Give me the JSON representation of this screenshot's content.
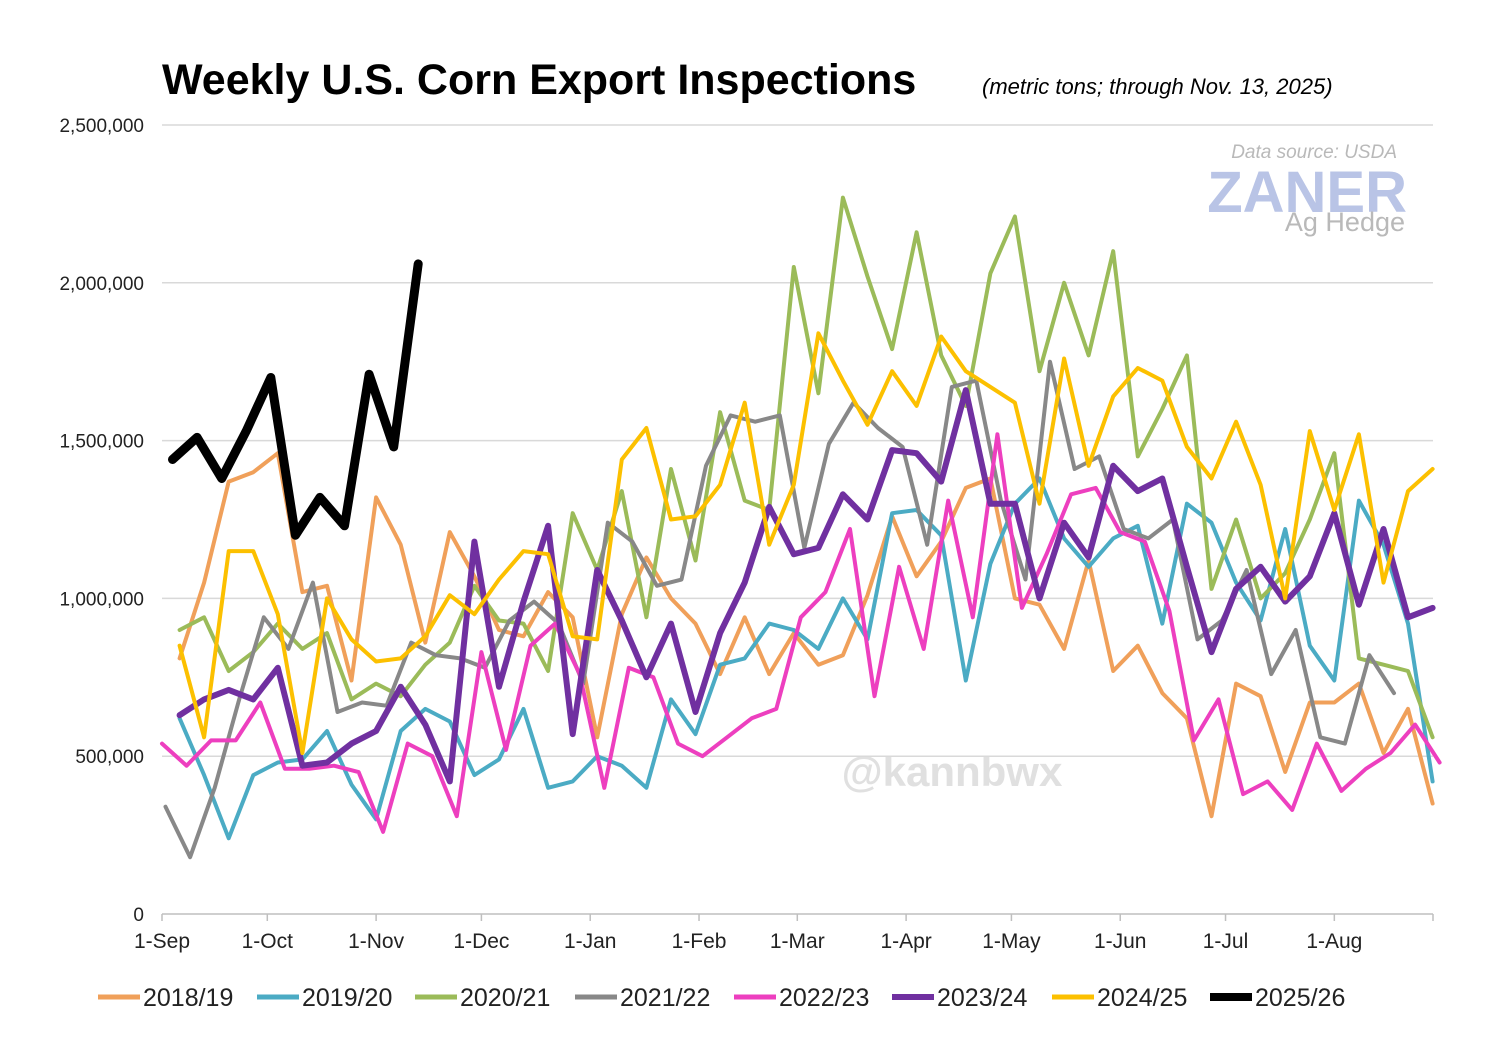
{
  "chart_data": {
    "type": "line",
    "title": "Weekly U.S. Corn Export Inspections",
    "subtitle": "(metric tons; through Nov. 13, 2025)",
    "source": "Data source: USDA",
    "watermark": {
      "brand": "ZANER",
      "brand_sub": "Ag Hedge",
      "handle": "@kannbwx"
    },
    "xlabel": "",
    "ylabel": "",
    "ylim": [
      0,
      2500000
    ],
    "yticks": [
      {
        "value": 0,
        "label": "0"
      },
      {
        "value": 500000,
        "label": "500,000"
      },
      {
        "value": 1000000,
        "label": "1,000,000"
      },
      {
        "value": 1500000,
        "label": "1,500,000"
      },
      {
        "value": 2000000,
        "label": "2,000,000"
      },
      {
        "value": 2500000,
        "label": "2,500,000"
      }
    ],
    "x_unit": "days since 1-Sep",
    "xlim": [
      0,
      365
    ],
    "xticks": [
      {
        "day": 0,
        "label": "1-Sep"
      },
      {
        "day": 30,
        "label": "1-Oct"
      },
      {
        "day": 61,
        "label": "1-Nov"
      },
      {
        "day": 91,
        "label": "1-Dec"
      },
      {
        "day": 122,
        "label": "1-Jan"
      },
      {
        "day": 153,
        "label": "1-Feb"
      },
      {
        "day": 181,
        "label": "1-Mar"
      },
      {
        "day": 212,
        "label": "1-Apr"
      },
      {
        "day": 242,
        "label": "1-May"
      },
      {
        "day": 273,
        "label": "1-Jun"
      },
      {
        "day": 303,
        "label": "1-Jul"
      },
      {
        "day": 334,
        "label": "1-Aug"
      }
    ],
    "legend_position": "bottom",
    "grid": true,
    "series": [
      {
        "name": "2018/19",
        "color": "#f0a05a",
        "width": 4,
        "start_day": 5,
        "values": [
          810000,
          1050000,
          1370000,
          1400000,
          1460000,
          1020000,
          1040000,
          740000,
          1320000,
          1170000,
          860000,
          1210000,
          1070000,
          900000,
          880000,
          1020000,
          940000,
          560000,
          950000,
          1130000,
          1000000,
          920000,
          760000,
          940000,
          760000,
          890000,
          790000,
          820000,
          1010000,
          1260000,
          1070000,
          1180000,
          1350000,
          1380000,
          1000000,
          980000,
          840000,
          1120000,
          770000,
          850000,
          700000,
          620000,
          310000,
          730000,
          690000,
          450000,
          670000,
          670000,
          730000,
          510000,
          650000,
          350000
        ]
      },
      {
        "name": "2019/20",
        "color": "#4babc4",
        "width": 4,
        "start_day": 5,
        "values": [
          620000,
          440000,
          240000,
          440000,
          480000,
          490000,
          580000,
          410000,
          300000,
          580000,
          650000,
          610000,
          440000,
          490000,
          650000,
          400000,
          420000,
          500000,
          470000,
          400000,
          680000,
          570000,
          790000,
          810000,
          920000,
          900000,
          840000,
          1000000,
          870000,
          1270000,
          1280000,
          1200000,
          740000,
          1110000,
          1300000,
          1380000,
          1190000,
          1100000,
          1190000,
          1230000,
          920000,
          1300000,
          1240000,
          1050000,
          930000,
          1220000,
          850000,
          740000,
          1310000,
          1170000,
          920000,
          420000
        ]
      },
      {
        "name": "2020/21",
        "color": "#9bbb59",
        "width": 4,
        "start_day": 5,
        "values": [
          900000,
          940000,
          770000,
          830000,
          920000,
          840000,
          890000,
          680000,
          730000,
          690000,
          790000,
          860000,
          1040000,
          930000,
          920000,
          770000,
          1270000,
          1090000,
          1340000,
          940000,
          1410000,
          1120000,
          1590000,
          1310000,
          1280000,
          2050000,
          1650000,
          2270000,
          2020000,
          1790000,
          2160000,
          1770000,
          1610000,
          2030000,
          2210000,
          1720000,
          2000000,
          1770000,
          2100000,
          1450000,
          1600000,
          1770000,
          1030000,
          1250000,
          1000000,
          1080000,
          1250000,
          1460000,
          810000,
          790000,
          770000,
          560000
        ]
      },
      {
        "name": "2021/22",
        "color": "#888888",
        "width": 4,
        "start_day": 1,
        "values": [
          340000,
          180000,
          400000,
          680000,
          940000,
          840000,
          1050000,
          640000,
          670000,
          660000,
          860000,
          820000,
          810000,
          780000,
          930000,
          990000,
          920000,
          730000,
          1240000,
          1180000,
          1040000,
          1060000,
          1420000,
          1580000,
          1560000,
          1580000,
          1160000,
          1490000,
          1620000,
          1540000,
          1480000,
          1170000,
          1670000,
          1690000,
          1310000,
          1060000,
          1750000,
          1410000,
          1450000,
          1220000,
          1190000,
          1250000,
          870000,
          930000,
          1090000,
          760000,
          900000,
          560000,
          540000,
          820000,
          700000
        ]
      },
      {
        "name": "2022/23",
        "color": "#ed3fbf",
        "width": 4,
        "start_day": 0,
        "values": [
          540000,
          470000,
          550000,
          550000,
          670000,
          460000,
          460000,
          470000,
          450000,
          260000,
          540000,
          500000,
          310000,
          830000,
          520000,
          850000,
          920000,
          760000,
          400000,
          780000,
          750000,
          540000,
          500000,
          560000,
          620000,
          650000,
          940000,
          1020000,
          1220000,
          690000,
          1100000,
          840000,
          1310000,
          940000,
          1520000,
          970000,
          1140000,
          1330000,
          1350000,
          1210000,
          1180000,
          960000,
          550000,
          680000,
          380000,
          420000,
          330000,
          540000,
          390000,
          460000,
          510000,
          600000,
          480000
        ]
      },
      {
        "name": "2023/24",
        "color": "#7030a0",
        "width": 6,
        "start_day": 5,
        "values": [
          630000,
          680000,
          710000,
          680000,
          780000,
          470000,
          480000,
          540000,
          580000,
          720000,
          600000,
          420000,
          1180000,
          720000,
          990000,
          1230000,
          570000,
          1090000,
          930000,
          750000,
          920000,
          640000,
          890000,
          1050000,
          1290000,
          1140000,
          1160000,
          1330000,
          1250000,
          1470000,
          1460000,
          1370000,
          1660000,
          1300000,
          1300000,
          1000000,
          1240000,
          1130000,
          1420000,
          1340000,
          1380000,
          1100000,
          830000,
          1030000,
          1100000,
          990000,
          1070000,
          1270000,
          980000,
          1220000,
          940000,
          970000
        ]
      },
      {
        "name": "2024/25",
        "color": "#fcc000",
        "width": 4,
        "start_day": 5,
        "values": [
          850000,
          560000,
          1150000,
          1150000,
          950000,
          510000,
          1000000,
          870000,
          800000,
          810000,
          880000,
          1010000,
          950000,
          1060000,
          1150000,
          1140000,
          880000,
          870000,
          1440000,
          1540000,
          1250000,
          1260000,
          1360000,
          1620000,
          1170000,
          1360000,
          1840000,
          1690000,
          1550000,
          1720000,
          1610000,
          1830000,
          1720000,
          1670000,
          1620000,
          1300000,
          1760000,
          1420000,
          1640000,
          1730000,
          1690000,
          1480000,
          1380000,
          1560000,
          1360000,
          1000000,
          1530000,
          1280000,
          1520000,
          1050000,
          1340000,
          1410000
        ]
      },
      {
        "name": "2025/26",
        "color": "#000000",
        "width": 9,
        "start_day": 3,
        "values": [
          1440000,
          1510000,
          1380000,
          1530000,
          1700000,
          1200000,
          1320000,
          1230000,
          1710000,
          1480000,
          2060000
        ]
      }
    ]
  }
}
